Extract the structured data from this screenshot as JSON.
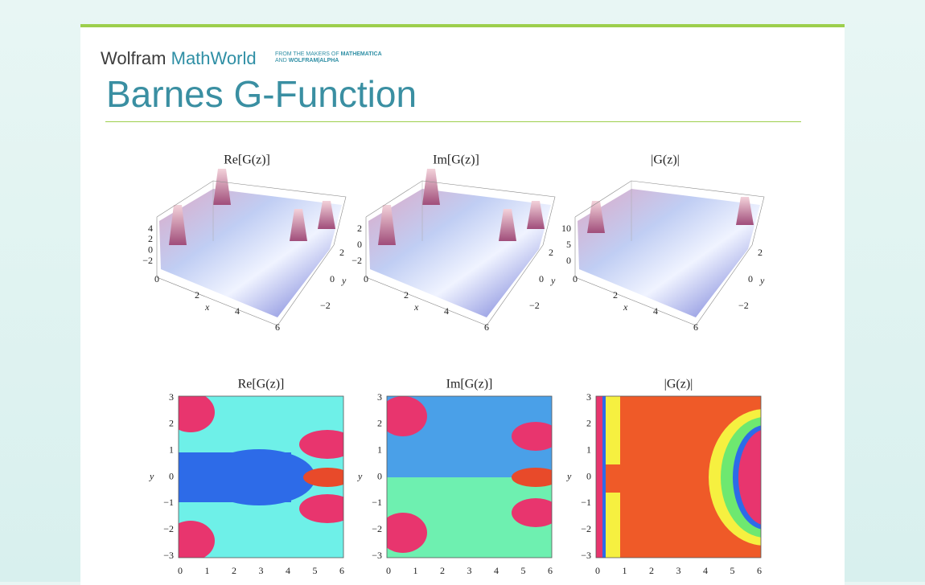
{
  "header": {
    "brand_wolfram": "Wolfram",
    "brand_mathworld": "MathWorld",
    "tagline_1": "FROM THE MAKERS OF",
    "tagline_1_bold": "MATHEMATICA",
    "tagline_2": "AND",
    "tagline_2_bold": "WOLFRAM|ALPHA"
  },
  "title": "Barnes G-Function",
  "surface_plots": [
    {
      "label": "Re[G(z)]",
      "z_ticks": [
        "4",
        "2",
        "0",
        "−2"
      ],
      "x_ticks": [
        "0",
        "2",
        "4",
        "6"
      ],
      "y_ticks": [
        "2",
        "0",
        "−2"
      ],
      "x_label": "x",
      "y_label": "y"
    },
    {
      "label": "Im[G(z)]",
      "z_ticks": [
        "2",
        "0",
        "−2"
      ],
      "x_ticks": [
        "0",
        "2",
        "4",
        "6"
      ],
      "y_ticks": [
        "2",
        "0",
        "−2"
      ],
      "x_label": "x",
      "y_label": "y"
    },
    {
      "label": "|G(z)|",
      "z_ticks": [
        "10",
        "5",
        "0"
      ],
      "x_ticks": [
        "0",
        "2",
        "4",
        "6"
      ],
      "y_ticks": [
        "2",
        "0",
        "−2"
      ],
      "x_label": "x",
      "y_label": "y"
    }
  ],
  "contour_plots": [
    {
      "label": "Re[G(z)]",
      "x_ticks": [
        "0",
        "1",
        "2",
        "3",
        "4",
        "5",
        "6"
      ],
      "y_ticks": [
        "3",
        "2",
        "1",
        "0",
        "−1",
        "−2",
        "−3"
      ],
      "y_label": "y"
    },
    {
      "label": "Im[G(z)]",
      "x_ticks": [
        "0",
        "1",
        "2",
        "3",
        "4",
        "5",
        "6"
      ],
      "y_ticks": [
        "3",
        "2",
        "1",
        "0",
        "−1",
        "−2",
        "−3"
      ],
      "y_label": "y"
    },
    {
      "label": "|G(z)|",
      "x_ticks": [
        "0",
        "1",
        "2",
        "3",
        "4",
        "5",
        "6"
      ],
      "y_ticks": [
        "3",
        "2",
        "1",
        "0",
        "−1",
        "−2",
        "−3"
      ],
      "y_label": "y"
    }
  ]
}
